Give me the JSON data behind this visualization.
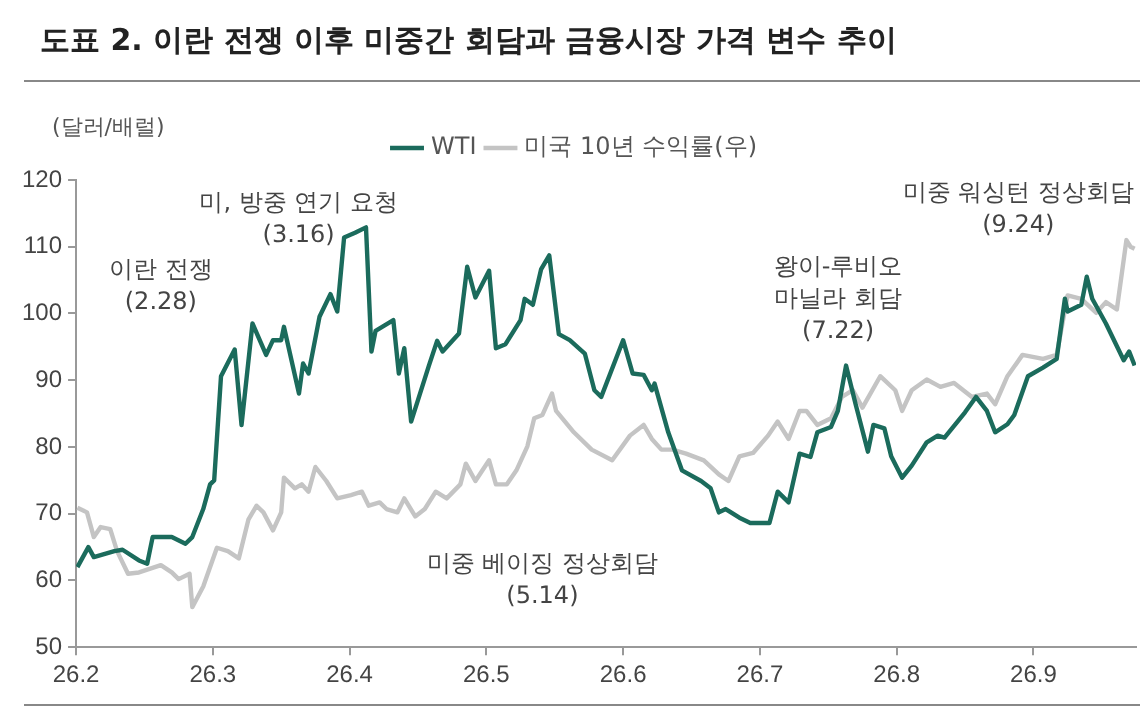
{
  "chart_data": {
    "type": "line",
    "title": "도표 2. 이란 전쟁 이후 미중간 회담과 금융시장 가격 변수 추이",
    "ylabel": "(달러/배럴)",
    "xlim": [
      26.2,
      26.975
    ],
    "xticks": [
      26.2,
      26.3,
      26.4,
      26.5,
      26.6,
      26.7,
      26.8,
      26.9
    ],
    "ylim": [
      50,
      120
    ],
    "yticks": [
      50,
      60,
      70,
      80,
      90,
      100,
      110,
      120
    ],
    "grid": false,
    "legend": "top",
    "marker": "none",
    "line_style": "solid",
    "annotations": [
      "이란 전쟁\n(2.28)",
      "미, 방중 연기 요청\n(3.16)",
      "미중 베이징 정상회담\n(5.14)",
      "왕이-루비오\n마닐라 회담\n(7.22)",
      "미중 워싱턴 정상회담\n(9.24)"
    ],
    "series": [
      {
        "name": "WTI",
        "color": "#1b6b5c",
        "x": [
          26.201,
          26.209,
          26.213,
          26.228,
          26.234,
          26.246,
          26.252,
          26.256,
          26.27,
          26.28,
          26.285,
          26.293,
          26.298,
          26.301,
          26.306,
          26.316,
          26.321,
          26.329,
          26.339,
          26.344,
          26.35,
          26.352,
          26.363,
          26.366,
          26.37,
          26.378,
          26.386,
          26.391,
          26.396,
          26.404,
          26.412,
          26.416,
          26.419,
          26.432,
          26.436,
          26.44,
          26.445,
          26.458,
          26.464,
          26.468,
          26.48,
          26.486,
          26.492,
          26.502,
          26.507,
          26.514,
          26.525,
          26.528,
          26.534,
          26.54,
          26.546,
          26.553,
          26.561,
          26.572,
          26.579,
          26.584,
          26.6,
          26.607,
          26.615,
          26.621,
          26.623,
          26.633,
          26.643,
          26.657,
          26.664,
          26.67,
          26.675,
          26.685,
          26.693,
          26.707,
          26.713,
          26.721,
          26.729,
          26.737,
          26.742,
          26.752,
          26.757,
          26.763,
          26.77,
          26.779,
          26.783,
          26.791,
          26.796,
          26.804,
          26.811,
          26.822,
          26.83,
          26.835,
          26.85,
          26.858,
          26.866,
          26.872,
          26.881,
          26.886,
          26.896,
          26.907,
          26.917,
          26.923,
          26.925,
          26.935,
          26.939,
          26.943,
          26.953,
          26.966,
          26.97,
          26.974
        ],
        "values": [
          62,
          65,
          63.5,
          64.4,
          64.6,
          63,
          62.5,
          66.5,
          66.5,
          65.5,
          66.5,
          70.7,
          74.4,
          75,
          90.6,
          94.6,
          83.3,
          98.5,
          93.8,
          96,
          96,
          98,
          88,
          92.5,
          91,
          99.5,
          102.9,
          100.3,
          111.4,
          112.1,
          112.9,
          94.3,
          97.4,
          99,
          91,
          94.8,
          83.8,
          92.2,
          95.9,
          94.3,
          97,
          107,
          102.4,
          106.4,
          94.8,
          95.4,
          99,
          102.2,
          101.3,
          106.6,
          108.7,
          96.9,
          96,
          94,
          88.5,
          87.5,
          96,
          91,
          90.8,
          88.5,
          89.5,
          82.2,
          76.5,
          74.9,
          73.8,
          70.2,
          70.7,
          69.4,
          68.6,
          68.6,
          73.3,
          71.7,
          79,
          78.5,
          82.2,
          83,
          85.4,
          92.2,
          86.4,
          79.3,
          83.3,
          82.8,
          78.6,
          75.4,
          77.2,
          80.7,
          81.7,
          81.4,
          85.2,
          87.5,
          85.4,
          82.2,
          83.4,
          84.8,
          90.6,
          91.9,
          93.2,
          102.2,
          100.3,
          101.3,
          105.5,
          102.2,
          98.5,
          93,
          94.3,
          92.2
        ]
      },
      {
        "name": "미국 10년 수익률(우)",
        "color": "#c4c4c4",
        "x": [
          26.201,
          26.208,
          26.213,
          26.218,
          26.225,
          26.23,
          26.238,
          26.246,
          26.262,
          26.27,
          26.275,
          26.283,
          26.285,
          26.293,
          26.303,
          26.311,
          26.319,
          26.326,
          26.332,
          26.337,
          26.344,
          26.35,
          26.352,
          26.36,
          26.365,
          26.37,
          26.375,
          26.383,
          26.391,
          26.401,
          26.409,
          26.414,
          26.422,
          26.427,
          26.435,
          26.44,
          26.448,
          26.455,
          26.463,
          26.471,
          26.481,
          26.485,
          26.492,
          26.502,
          26.507,
          26.515,
          26.522,
          26.53,
          26.535,
          26.541,
          26.548,
          26.551,
          26.564,
          26.577,
          26.592,
          26.605,
          26.615,
          26.621,
          26.628,
          26.636,
          26.646,
          26.659,
          26.67,
          26.677,
          26.685,
          26.695,
          26.706,
          26.713,
          26.721,
          26.729,
          26.734,
          26.742,
          26.752,
          26.76,
          26.768,
          26.775,
          26.788,
          26.799,
          26.804,
          26.811,
          26.822,
          26.832,
          26.842,
          26.855,
          26.866,
          26.872,
          26.881,
          26.892,
          26.907,
          26.917,
          26.925,
          26.935,
          26.946,
          26.953,
          26.961,
          26.968,
          26.971,
          26.974
        ],
        "values": [
          70.9,
          70.2,
          66.5,
          68,
          67.7,
          64.4,
          61,
          61.2,
          62.3,
          61.2,
          60.2,
          61,
          56,
          59.1,
          64.9,
          64.4,
          63.3,
          69.1,
          71.2,
          70.2,
          67.5,
          70.2,
          75.4,
          73.8,
          74.4,
          73.3,
          77,
          74.9,
          72.3,
          72.8,
          73.3,
          71.2,
          71.7,
          70.7,
          70.2,
          72.3,
          69.6,
          70.7,
          73.3,
          72.3,
          74.4,
          77.5,
          74.9,
          78,
          74.4,
          74.4,
          76.5,
          80.1,
          84.3,
          84.8,
          88,
          85.4,
          82.2,
          79.6,
          78,
          81.7,
          83.3,
          81.2,
          79.6,
          79.6,
          79,
          78,
          75.9,
          74.9,
          78.6,
          79.1,
          81.7,
          83.8,
          81.2,
          85.4,
          85.4,
          83.3,
          84.3,
          87.5,
          88.5,
          85.9,
          90.6,
          88.5,
          85.4,
          88.5,
          90.1,
          89,
          89.6,
          87.5,
          88,
          86.4,
          90.6,
          93.8,
          93.2,
          93.8,
          102.7,
          102.2,
          100.1,
          101.7,
          100.6,
          111,
          110,
          109.7
        ]
      }
    ]
  }
}
